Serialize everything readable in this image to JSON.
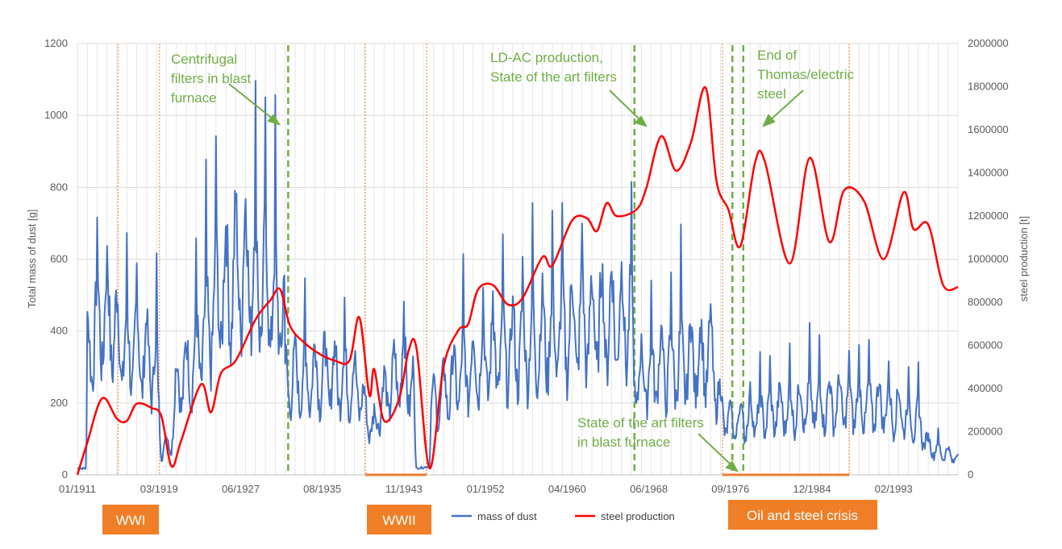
{
  "chart_data": {
    "type": "line",
    "y_left_label": "Total mass of dust [g]",
    "y_right_label": "steel production [t]",
    "y_left_lim": [
      0,
      1200
    ],
    "y_left_ticks": [
      "0",
      "200",
      "400",
      "600",
      "800",
      "1000",
      "1200"
    ],
    "y_right_lim": [
      0,
      2000000
    ],
    "y_right_ticks": [
      "0",
      "200000",
      "400000",
      "600000",
      "800000",
      "1000000",
      "1200000",
      "1400000",
      "1600000",
      "1800000",
      "2000000"
    ],
    "x_range": [
      "1911-01",
      "2000-01"
    ],
    "x_tick_labels": [
      "01/1911",
      "03/1919",
      "06/1927",
      "08/1935",
      "11/1943",
      "01/1952",
      "04/1960",
      "06/1968",
      "09/1976",
      "12/1984",
      "02/1993"
    ],
    "grid": true,
    "legend_position": "bottom",
    "series": [
      {
        "name": "mass of dust",
        "color": "#4472c4",
        "axis": "left",
        "trend": [
          [
            1911.0,
            15
          ],
          [
            1911.9,
            15
          ],
          [
            1912.0,
            330
          ],
          [
            1913.0,
            420
          ],
          [
            1914.0,
            450
          ],
          [
            1915.0,
            380
          ],
          [
            1916.0,
            340
          ],
          [
            1917.0,
            350
          ],
          [
            1918.0,
            320
          ],
          [
            1919.0,
            300
          ],
          [
            1919.5,
            70
          ],
          [
            1920.5,
            90
          ],
          [
            1921.0,
            250
          ],
          [
            1922.0,
            280
          ],
          [
            1923.0,
            330
          ],
          [
            1924.0,
            400
          ],
          [
            1925.0,
            480
          ],
          [
            1926.0,
            520
          ],
          [
            1927.0,
            560
          ],
          [
            1928.0,
            580
          ],
          [
            1929.0,
            560
          ],
          [
            1930.0,
            520
          ],
          [
            1931.0,
            480
          ],
          [
            1931.9,
            460
          ],
          [
            1932.0,
            260
          ],
          [
            1934.0,
            270
          ],
          [
            1936.0,
            275
          ],
          [
            1938.0,
            270
          ],
          [
            1939.5,
            240
          ],
          [
            1940.0,
            180
          ],
          [
            1941.0,
            120
          ],
          [
            1941.5,
            190
          ],
          [
            1943.0,
            260
          ],
          [
            1944.0,
            300
          ],
          [
            1945.0,
            230
          ],
          [
            1945.2,
            15
          ],
          [
            1946.6,
            20
          ],
          [
            1946.7,
            180
          ],
          [
            1950.0,
            290
          ],
          [
            1955.0,
            350
          ],
          [
            1960.0,
            400
          ],
          [
            1963.0,
            420
          ],
          [
            1967.0,
            440
          ],
          [
            1967.2,
            330
          ],
          [
            1967.3,
            260
          ],
          [
            1970.0,
            300
          ],
          [
            1974.0,
            320
          ],
          [
            1975.0,
            330
          ],
          [
            1975.6,
            250
          ],
          [
            1976.0,
            180
          ],
          [
            1977.0,
            140
          ],
          [
            1980.0,
            170
          ],
          [
            1985.0,
            195
          ],
          [
            1990.0,
            195
          ],
          [
            1993.0,
            190
          ],
          [
            1996.0,
            150
          ],
          [
            1997.0,
            80
          ],
          [
            2000.0,
            45
          ]
        ]
      },
      {
        "name": "steel production",
        "color": "#ff0000",
        "axis": "right",
        "points": [
          [
            1911.0,
            0
          ],
          [
            1912.0,
            150000
          ],
          [
            1913.5,
            355000
          ],
          [
            1915.0,
            260000
          ],
          [
            1916.0,
            250000
          ],
          [
            1917.0,
            330000
          ],
          [
            1918.5,
            310000
          ],
          [
            1919.5,
            270000
          ],
          [
            1920.5,
            40000
          ],
          [
            1921.5,
            160000
          ],
          [
            1923.5,
            420000
          ],
          [
            1924.5,
            290000
          ],
          [
            1925.5,
            470000
          ],
          [
            1927.0,
            530000
          ],
          [
            1929.0,
            720000
          ],
          [
            1930.5,
            810000
          ],
          [
            1931.5,
            860000
          ],
          [
            1932.5,
            690000
          ],
          [
            1934.0,
            610000
          ],
          [
            1935.5,
            560000
          ],
          [
            1937.0,
            530000
          ],
          [
            1938.5,
            530000
          ],
          [
            1939.5,
            730000
          ],
          [
            1940.5,
            370000
          ],
          [
            1941.0,
            490000
          ],
          [
            1942.0,
            250000
          ],
          [
            1943.5,
            350000
          ],
          [
            1944.5,
            580000
          ],
          [
            1945.3,
            580000
          ],
          [
            1946.6,
            30000
          ],
          [
            1948.0,
            500000
          ],
          [
            1949.5,
            670000
          ],
          [
            1950.5,
            700000
          ],
          [
            1951.5,
            860000
          ],
          [
            1953.0,
            880000
          ],
          [
            1954.5,
            790000
          ],
          [
            1956.0,
            820000
          ],
          [
            1958.0,
            1010000
          ],
          [
            1959.0,
            970000
          ],
          [
            1961.0,
            1180000
          ],
          [
            1962.5,
            1190000
          ],
          [
            1963.5,
            1130000
          ],
          [
            1964.5,
            1260000
          ],
          [
            1965.5,
            1200000
          ],
          [
            1967.5,
            1230000
          ],
          [
            1968.5,
            1330000
          ],
          [
            1970.0,
            1570000
          ],
          [
            1971.5,
            1410000
          ],
          [
            1973.0,
            1540000
          ],
          [
            1974.5,
            1795000
          ],
          [
            1975.6,
            1360000
          ],
          [
            1976.8,
            1230000
          ],
          [
            1978.0,
            1060000
          ],
          [
            1979.5,
            1450000
          ],
          [
            1980.5,
            1450000
          ],
          [
            1983.0,
            980000
          ],
          [
            1985.0,
            1470000
          ],
          [
            1987.0,
            1080000
          ],
          [
            1988.5,
            1320000
          ],
          [
            1990.5,
            1270000
          ],
          [
            1992.5,
            1000000
          ],
          [
            1994.5,
            1310000
          ],
          [
            1995.5,
            1140000
          ],
          [
            1997.0,
            1160000
          ],
          [
            1998.5,
            880000
          ],
          [
            2000.0,
            870000
          ]
        ]
      }
    ],
    "orange_lines_years": [
      1915.1,
      1919.3,
      1940.1,
      1946.3,
      1976.2,
      1989.0
    ],
    "green_lines_years": [
      1932.3,
      1967.3,
      1977.2,
      1978.3
    ],
    "period_bars": [
      {
        "from": 1940.1,
        "to": 1946.3
      },
      {
        "from": 1976.2,
        "to": 1989.0
      }
    ],
    "annotations": [
      {
        "lines": [
          "Centrifugal",
          "filters in blast",
          "furnace"
        ]
      },
      {
        "lines": [
          "LD-AC production,",
          "State of the art filters"
        ]
      },
      {
        "lines": [
          "End of",
          "Thomas/electric",
          "steel"
        ]
      },
      {
        "lines": [
          "State of the art filters",
          "in blast furnace"
        ]
      }
    ],
    "period_labels": [
      "WWI",
      "WWII",
      "Oil and steel crisis"
    ]
  }
}
